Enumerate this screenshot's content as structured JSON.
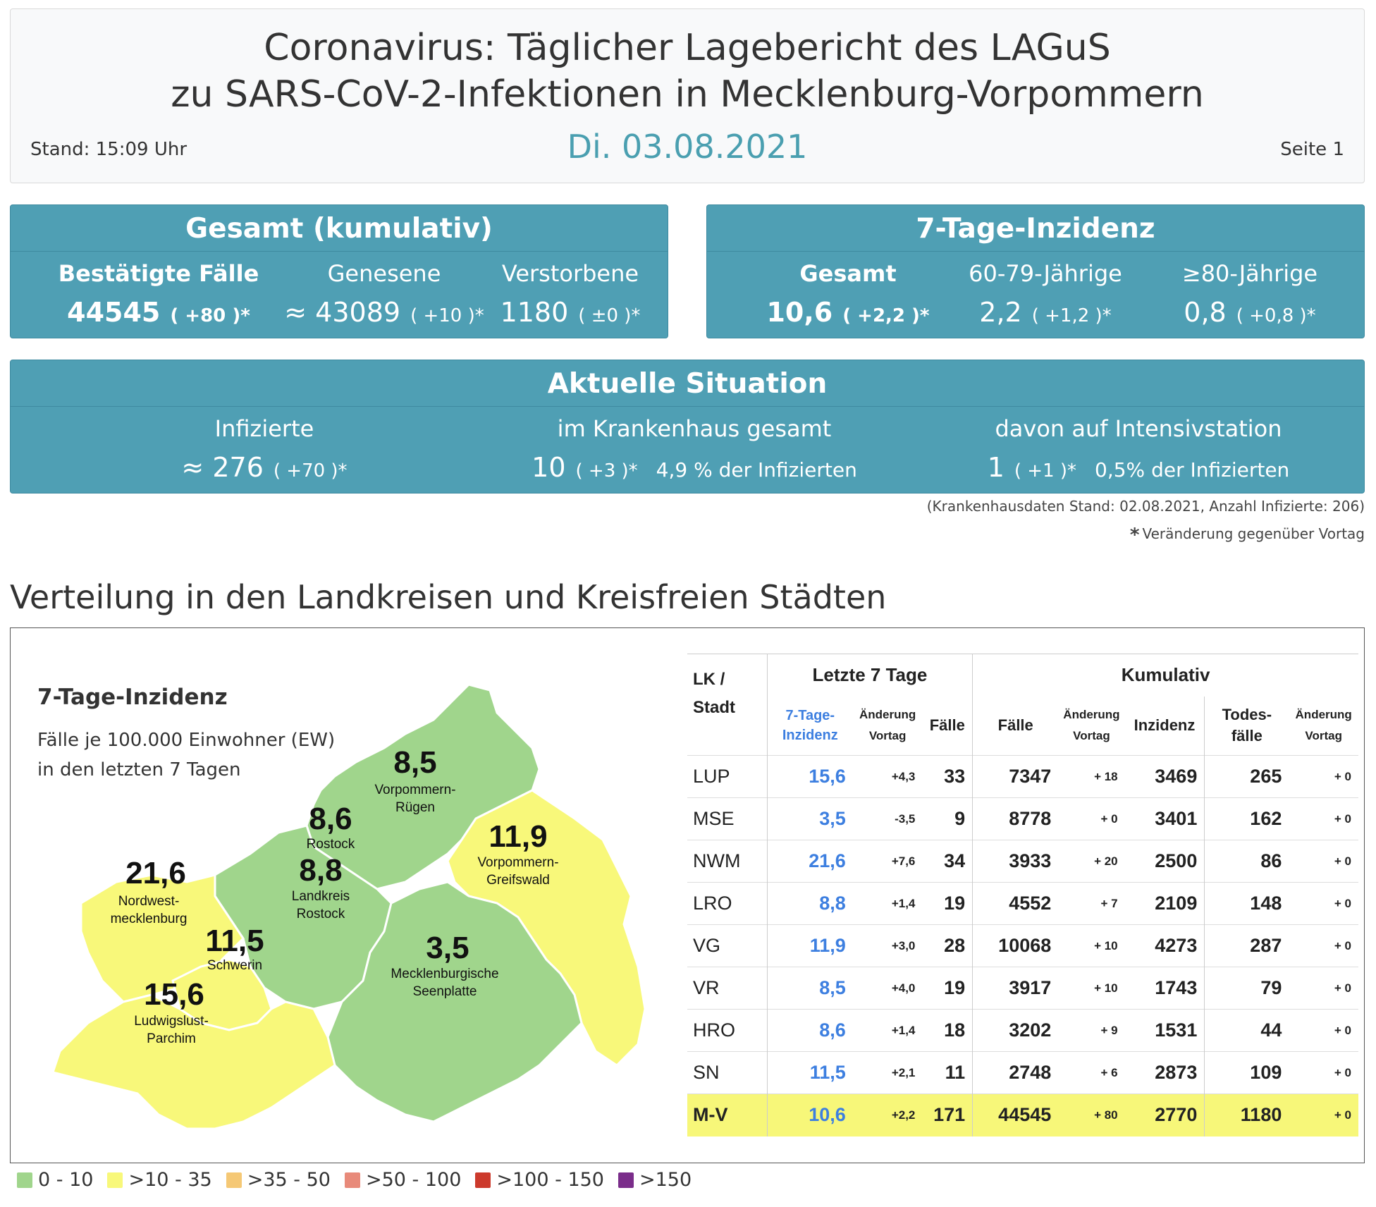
{
  "header": {
    "title_line1": "Coronavirus: Täglicher Lagebericht des LAGuS",
    "title_line2": "zu SARS-CoV-2-Infektionen in Mecklenburg-Vorpommern",
    "stand": "Stand: 15:09 Uhr",
    "date": "Di. 03.08.2021",
    "page": "Seite 1"
  },
  "gesamt": {
    "title": "Gesamt (kumulativ)",
    "cols": [
      {
        "label": "Bestätigte Fälle",
        "value": "44545",
        "change": "( +80 )*"
      },
      {
        "label": "Genesene",
        "value": "≈ 43089",
        "change": "( +10 )*"
      },
      {
        "label": "Verstorbene",
        "value": "1180",
        "change": "( ±0 )*"
      }
    ]
  },
  "inzidenz": {
    "title": "7-Tage-Inzidenz",
    "cols": [
      {
        "label": "Gesamt",
        "value": "10,6",
        "change": "( +2,2 )*"
      },
      {
        "label": "60-79-Jährige",
        "value": "2,2",
        "change": "( +1,2 )*"
      },
      {
        "label": "≥80-Jährige",
        "value": "0,8",
        "change": "( +0,8 )*"
      }
    ]
  },
  "aktuell": {
    "title": "Aktuelle Situation",
    "cols": [
      {
        "label": "Infizierte",
        "value": "≈ 276",
        "change": "( +70 )*",
        "extra": ""
      },
      {
        "label": "im Krankenhaus gesamt",
        "value": "10",
        "change": "( +3 )*",
        "extra": "4,9 % der Infizierten"
      },
      {
        "label": "davon auf Intensivstation",
        "value": "1",
        "change": "( +1 )*",
        "extra": "0,5% der Infizierten"
      }
    ]
  },
  "notes": {
    "hospital": "(Krankenhausdaten Stand: 02.08.2021, Anzahl Infizierte: 206)",
    "star": "*",
    "change_note": "Veränderung gegenüber Vortag"
  },
  "section_title": "Verteilung in den Landkreisen und Kreisfreien Städten",
  "map": {
    "title": "7-Tage-Inzidenz",
    "subtitle1": "Fälle je 100.000 Einwohner (EW)",
    "subtitle2": "in den letzten 7 Tagen",
    "regions": [
      {
        "value": "8,5",
        "name1": "Vorpommern-",
        "name2": "Rügen",
        "color": "#a0d58c"
      },
      {
        "value": "8,6",
        "name1": "Rostock",
        "name2": "",
        "color": "#a0d58c"
      },
      {
        "value": "8,8",
        "name1": "Landkreis",
        "name2": "Rostock",
        "color": "#a0d58c"
      },
      {
        "value": "11,9",
        "name1": "Vorpommern-",
        "name2": "Greifswald",
        "color": "#f8f87a"
      },
      {
        "value": "21,6",
        "name1": "Nordwest-",
        "name2": "mecklenburg",
        "color": "#f8f87a"
      },
      {
        "value": "11,5",
        "name1": "Schwerin",
        "name2": "",
        "color": "#f8f87a"
      },
      {
        "value": "3,5",
        "name1": "Mecklenburgische",
        "name2": "Seenplatte",
        "color": "#a0d58c"
      },
      {
        "value": "15,6",
        "name1": "Ludwigslust-",
        "name2": "Parchim",
        "color": "#f8f87a"
      }
    ]
  },
  "table": {
    "group_last7": "Letzte 7 Tage",
    "group_cum": "Kumulativ",
    "h_lk1": "LK /",
    "h_lk2": "Stadt",
    "h_inz1": "7-Tage-",
    "h_inz2": "Inzidenz",
    "h_aend1": "Änderung",
    "h_aend2": "Vortag",
    "h_faelle": "Fälle",
    "h_cfaelle": "Fälle",
    "h_caend1": "Änderung",
    "h_caend2": "Vortag",
    "h_cinz": "Inzidenz",
    "h_tod1": "Todes-",
    "h_tod2": "fälle",
    "h_taend1": "Änderung",
    "h_taend2": "Vortag",
    "rows": [
      {
        "lk": "LUP",
        "inz": "15,6",
        "aend": "+4,3",
        "faelle": "33",
        "cf": "7347",
        "ca": "+ 18",
        "ci": "3469",
        "tod": "265",
        "ta": "+ 0"
      },
      {
        "lk": "MSE",
        "inz": "3,5",
        "aend": "-3,5",
        "faelle": "9",
        "cf": "8778",
        "ca": "+ 0",
        "ci": "3401",
        "tod": "162",
        "ta": "+ 0"
      },
      {
        "lk": "NWM",
        "inz": "21,6",
        "aend": "+7,6",
        "faelle": "34",
        "cf": "3933",
        "ca": "+ 20",
        "ci": "2500",
        "tod": "86",
        "ta": "+ 0"
      },
      {
        "lk": "LRO",
        "inz": "8,8",
        "aend": "+1,4",
        "faelle": "19",
        "cf": "4552",
        "ca": "+ 7",
        "ci": "2109",
        "tod": "148",
        "ta": "+ 0"
      },
      {
        "lk": "VG",
        "inz": "11,9",
        "aend": "+3,0",
        "faelle": "28",
        "cf": "10068",
        "ca": "+ 10",
        "ci": "4273",
        "tod": "287",
        "ta": "+ 0"
      },
      {
        "lk": "VR",
        "inz": "8,5",
        "aend": "+4,0",
        "faelle": "19",
        "cf": "3917",
        "ca": "+ 10",
        "ci": "1743",
        "tod": "79",
        "ta": "+ 0"
      },
      {
        "lk": "HRO",
        "inz": "8,6",
        "aend": "+1,4",
        "faelle": "18",
        "cf": "3202",
        "ca": "+ 9",
        "ci": "1531",
        "tod": "44",
        "ta": "+ 0"
      },
      {
        "lk": "SN",
        "inz": "11,5",
        "aend": "+2,1",
        "faelle": "11",
        "cf": "2748",
        "ca": "+ 6",
        "ci": "2873",
        "tod": "109",
        "ta": "+ 0"
      }
    ],
    "total": {
      "lk": "M-V",
      "inz": "10,6",
      "aend": "+2,2",
      "faelle": "171",
      "cf": "44545",
      "ca": "+ 80",
      "ci": "2770",
      "tod": "1180",
      "ta": "+ 0"
    }
  },
  "legend": [
    {
      "label": "0 - 10",
      "color": "#a0d58c"
    },
    {
      "label": ">10 - 35",
      "color": "#f8f87a"
    },
    {
      "label": ">35 - 50",
      "color": "#f5c875"
    },
    {
      "label": ">50 - 100",
      "color": "#e88a7a"
    },
    {
      "label": ">100 - 150",
      "color": "#cc3a2c"
    },
    {
      "label": ">150",
      "color": "#7a2d8a"
    }
  ]
}
